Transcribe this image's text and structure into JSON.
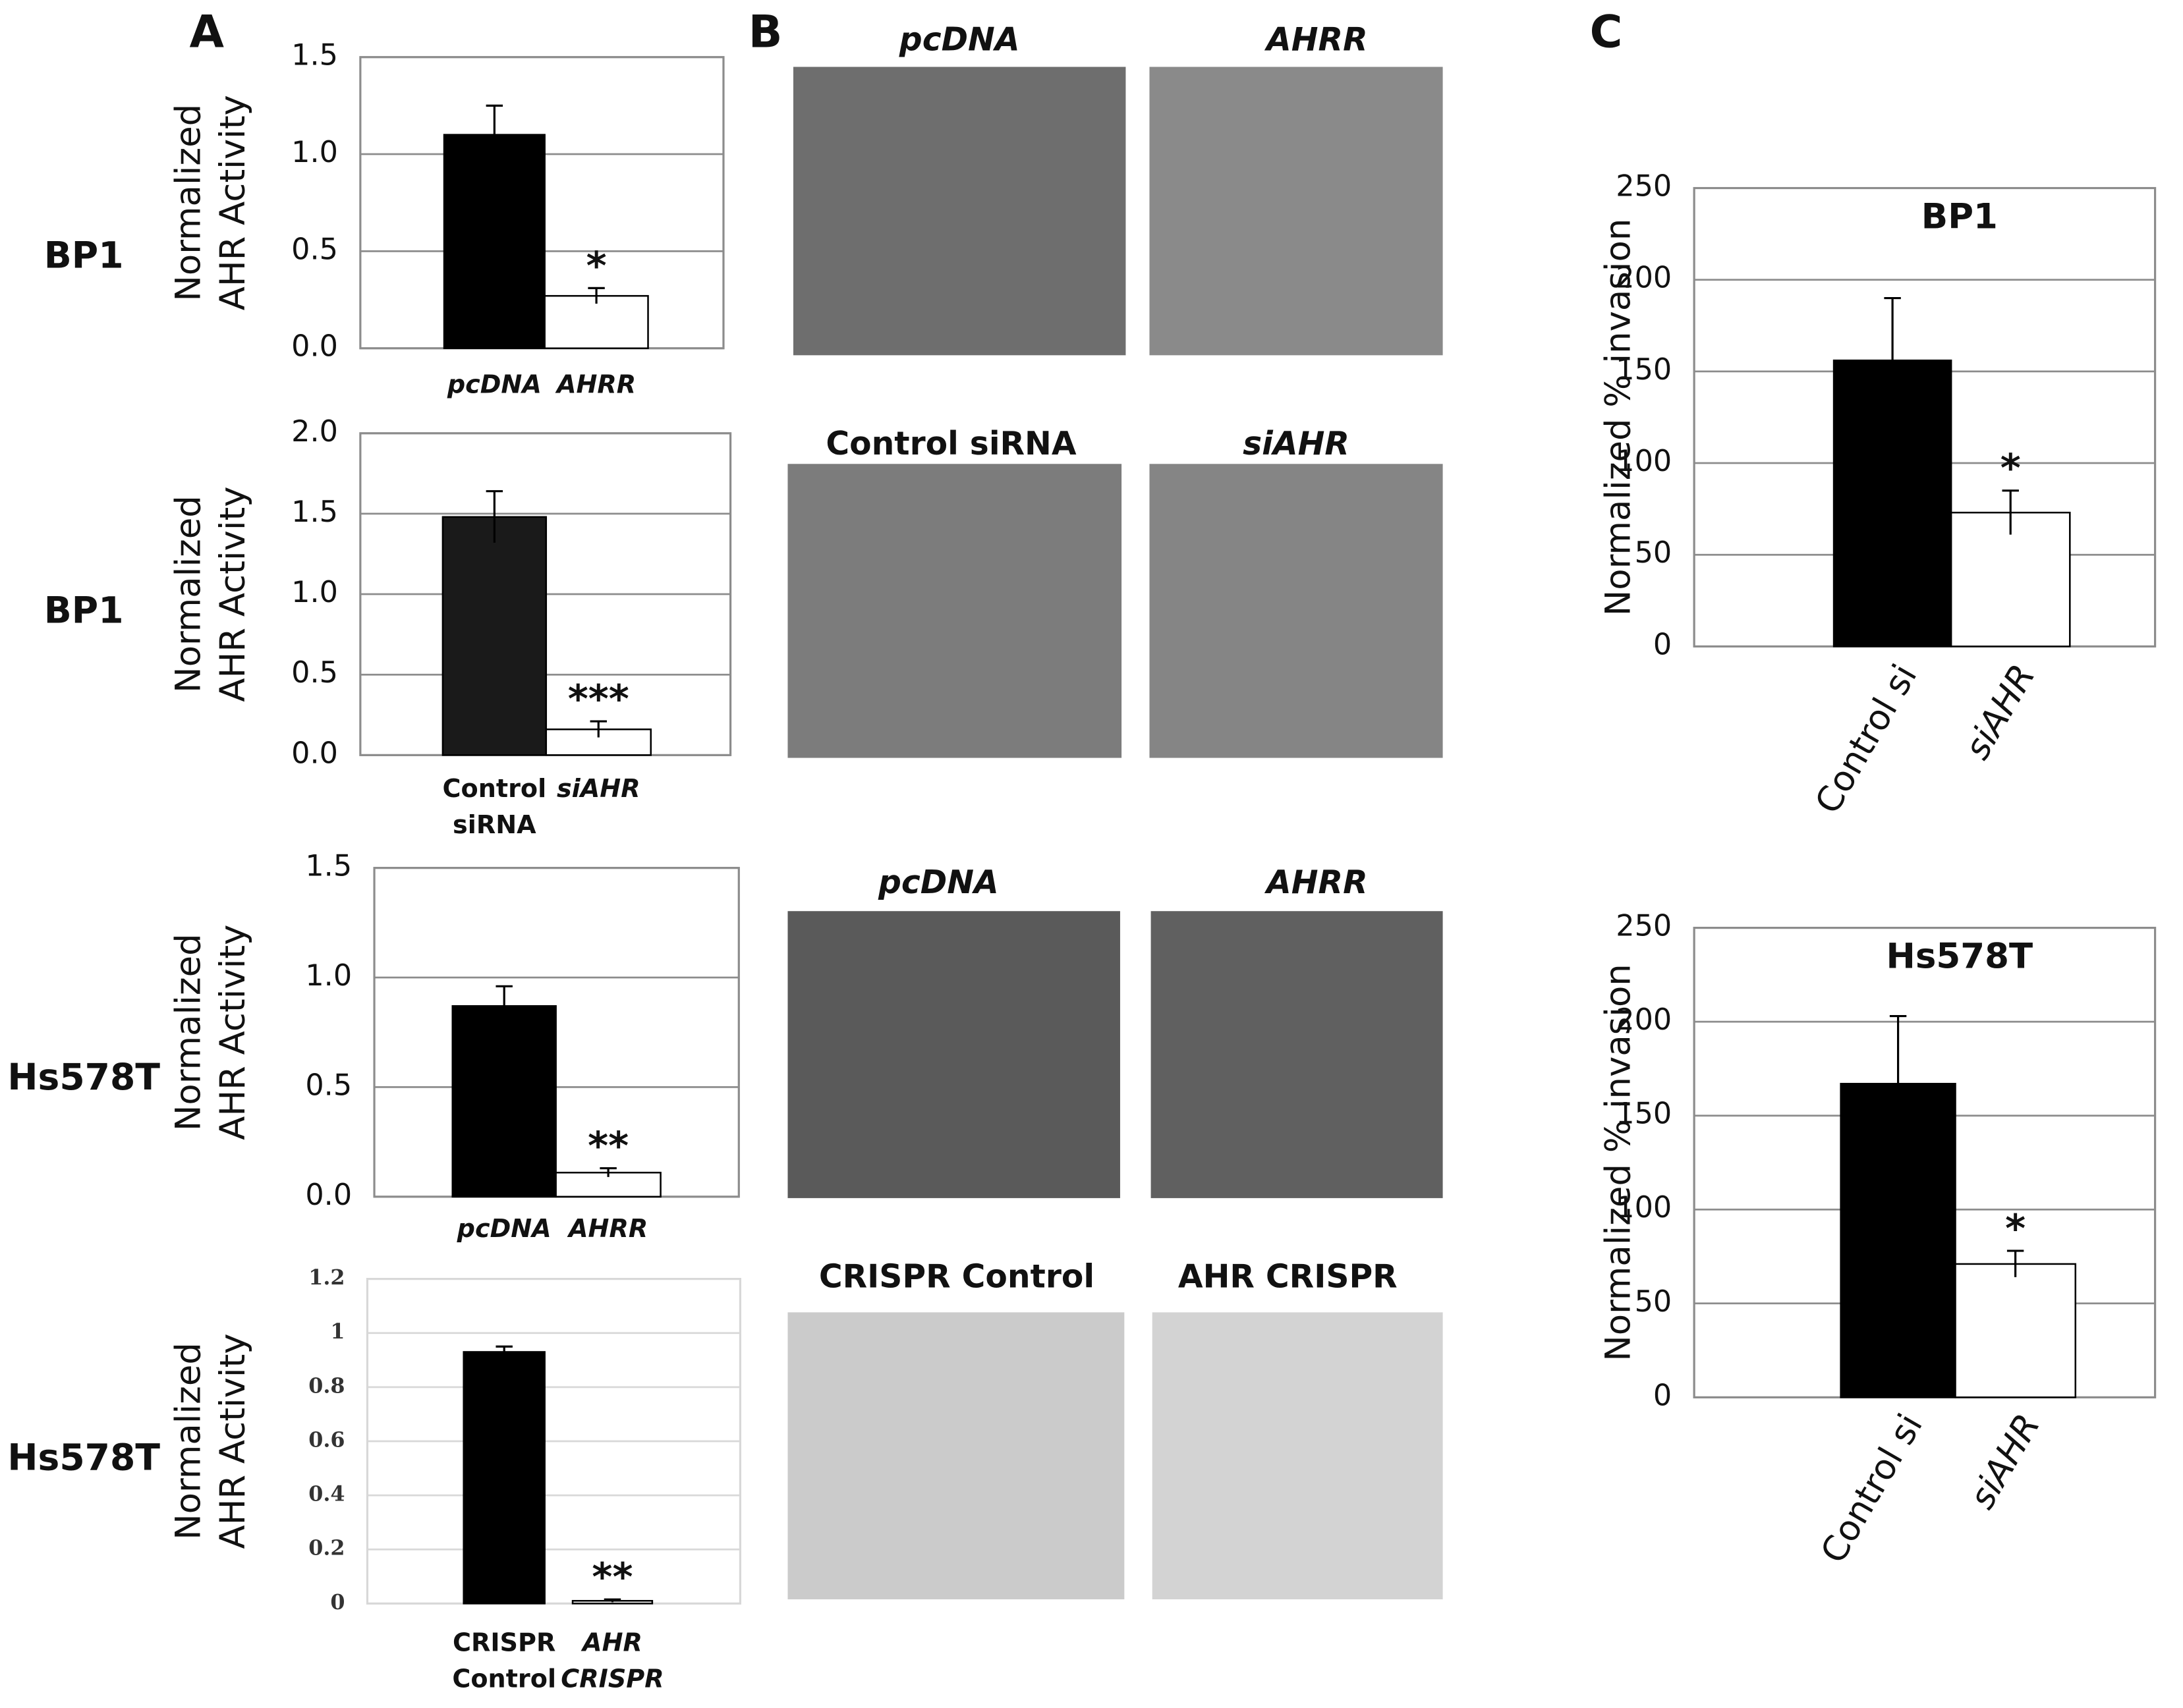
{
  "panels": [
    "A",
    "B",
    "C"
  ],
  "row_labels": [
    "BP1",
    "BP1",
    "Hs578T",
    "Hs578T"
  ],
  "image_captions": [
    "pcDNA",
    "AHRR",
    "Control siRNA",
    "siAHR",
    "pcDNA",
    "AHRR",
    "CRISPR Control",
    "AHR CRISPR"
  ],
  "chart_data": [
    {
      "type": "bar",
      "y_label": "Normalized AHR Activity",
      "categories": [
        "pcDNA",
        "AHRR"
      ],
      "values": [
        1.1,
        0.27
      ],
      "errors": [
        0.15,
        0.04
      ],
      "colors": [
        "#000000",
        "#ffffff"
      ],
      "value_annotations": [
        null,
        "*"
      ],
      "ylim": [
        0,
        1.5
      ],
      "yticks": [
        {
          "value": 0,
          "label": "0.0"
        },
        0.5,
        {
          "value": 1,
          "label": "1.0"
        },
        1.5
      ],
      "grid": true
    },
    {
      "type": "bar",
      "y_label": "Normalized AHR Activity",
      "categories": [
        "Control siRNA",
        "siAHR"
      ],
      "values": [
        1.48,
        0.16
      ],
      "errors": [
        0.16,
        0.05
      ],
      "colors": [
        "#1a1a1a",
        "#ffffff"
      ],
      "value_annotations": [
        null,
        "***"
      ],
      "ylim": [
        0,
        2
      ],
      "yticks": [
        {
          "value": 0,
          "label": "0.0"
        },
        0.5,
        {
          "value": 1,
          "label": "1.0"
        },
        1.5,
        {
          "value": 2,
          "label": "2.0"
        }
      ],
      "grid": true
    },
    {
      "type": "bar",
      "y_label": "Normalized AHR Activity",
      "categories": [
        "pcDNA",
        "AHRR"
      ],
      "values": [
        0.87,
        0.11
      ],
      "errors": [
        0.09,
        0.02
      ],
      "colors": [
        "#000000",
        "#ffffff"
      ],
      "value_annotations": [
        null,
        "**"
      ],
      "ylim": [
        0,
        1.5
      ],
      "yticks": [
        {
          "value": 0,
          "label": "0.0"
        },
        0.5,
        {
          "value": 1,
          "label": "1.0"
        },
        1.5
      ],
      "grid": true
    },
    {
      "type": "bar",
      "y_label": "Normalized AHR Activity",
      "categories": [
        "CRISPR Control",
        "AHR CRISPR"
      ],
      "values": [
        0.93,
        0.01
      ],
      "errors": [
        0.02,
        0.005
      ],
      "colors": [
        "#000000",
        "#ffffff"
      ],
      "value_annotations": [
        null,
        "**"
      ],
      "ylim": [
        0,
        1.2
      ],
      "yticks": [
        0,
        0.2,
        0.4,
        0.6,
        0.8,
        1,
        1.2
      ],
      "grid": true
    },
    {
      "type": "bar",
      "title": "BP1",
      "y_label": "Normalized  % invasion",
      "categories": [
        "Control si",
        "siAHR"
      ],
      "values": [
        156,
        73
      ],
      "errors": [
        34,
        12
      ],
      "colors": [
        "#000000",
        "#ffffff"
      ],
      "value_annotations": [
        null,
        "*"
      ],
      "ylim": [
        0,
        250
      ],
      "yticks": [
        0,
        50,
        100,
        150,
        200,
        250
      ],
      "grid": true
    },
    {
      "type": "bar",
      "title": "Hs578T",
      "y_label": "Normalized  % invasion",
      "categories": [
        "Control si",
        "siAHR"
      ],
      "values": [
        167,
        71
      ],
      "errors": [
        36,
        7
      ],
      "colors": [
        "#000000",
        "#ffffff"
      ],
      "value_annotations": [
        null,
        "*"
      ],
      "ylim": [
        0,
        250
      ],
      "yticks": [
        0,
        50,
        100,
        150,
        200,
        250
      ],
      "grid": true
    }
  ]
}
